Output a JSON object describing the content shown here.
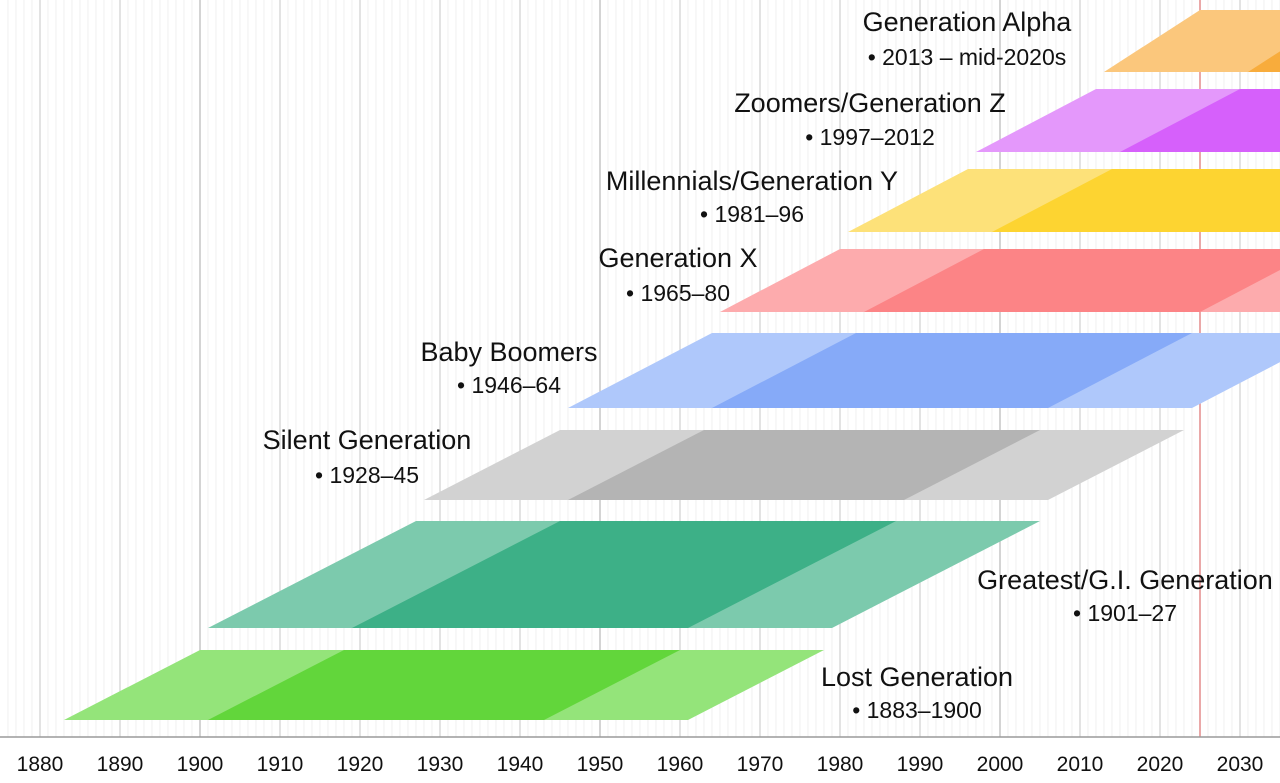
{
  "chart_data": {
    "type": "timeline",
    "title": "",
    "xlabel": "",
    "ylabel": "",
    "x_range": [
      1876,
      2035
    ],
    "x_ticks": [
      1880,
      1890,
      1900,
      1910,
      1920,
      1930,
      1940,
      1950,
      1960,
      1970,
      1980,
      1990,
      2000,
      2010,
      2020,
      2030
    ],
    "current_year_marker": 2025,
    "grid": true,
    "age_bands": {
      "light_until_age": 78,
      "dark_from_age": 18,
      "dark_until_age": 60
    },
    "generations": [
      {
        "name": "Lost Generation",
        "range_label": "• 1883–1900",
        "start": 1883,
        "end": 1900,
        "color": "#62d63b",
        "light_color": "#94e47a"
      },
      {
        "name": "Greatest/G.I. Generation",
        "range_label": "• 1901–27",
        "start": 1901,
        "end": 1927,
        "color": "#3db087",
        "light_color": "#7ccaad"
      },
      {
        "name": "Silent Generation",
        "range_label": "• 1928–45",
        "start": 1928,
        "end": 1945,
        "color": "#b4b4b4",
        "light_color": "#d2d2d2"
      },
      {
        "name": "Baby Boomers",
        "range_label": "• 1946–64",
        "start": 1946,
        "end": 1964,
        "color": "#86aaf8",
        "light_color": "#afc8fb"
      },
      {
        "name": "Generation X",
        "range_label": "• 1965–80",
        "start": 1965,
        "end": 1980,
        "color": "#fc8486",
        "light_color": "#fdabad"
      },
      {
        "name": "Millennials/Generation Y",
        "range_label": "• 1981–96",
        "start": 1981,
        "end": 1996,
        "color": "#fdd431",
        "light_color": "#fde179"
      },
      {
        "name": "Zoomers/Generation Z",
        "range_label": "• 1997–2012",
        "start": 1997,
        "end": 2012,
        "color": "#d660fb",
        "light_color": "#e498fb"
      },
      {
        "name": "Generation Alpha",
        "range_label": "• 2013 – mid-2020s",
        "start": 2013,
        "end": 2025,
        "color": "#f8ac3c",
        "light_color": "#fbc77c"
      }
    ]
  }
}
